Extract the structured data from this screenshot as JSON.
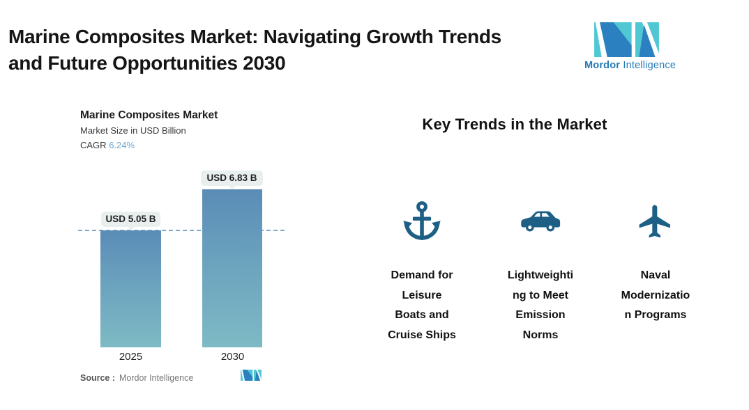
{
  "header": {
    "title": "Marine Composites Market: Navigating Growth Trends\nand Future Opportunities 2030",
    "logo": {
      "brand_bold": "Mordor",
      "brand_light": "Intelligence",
      "teal": "#4FC8D4",
      "blue": "#2B80C0",
      "text_color": "#2579B5"
    }
  },
  "chart": {
    "title": "Marine Composites Market",
    "subtitle": "Market Size in USD Billion",
    "cagr_label": "CAGR",
    "cagr_value": "6.24%",
    "source_label": "Source :",
    "source_value": "Mordor Intelligence"
  },
  "chart_data": {
    "type": "bar",
    "title": "Marine Composites Market",
    "subtitle": "Market Size in USD Billion",
    "cagr_pct": 6.24,
    "categories": [
      "2025",
      "2030"
    ],
    "values": [
      5.05,
      6.83
    ],
    "bar_labels": [
      "USD 5.05 B",
      "USD 6.83 B"
    ],
    "unit": "USD Billion",
    "ylim": [
      0,
      6.83
    ],
    "reference_line_at": 5.05,
    "grid": false,
    "legend": "none",
    "colors": {
      "bar_gradient_top": "#5A8CB6",
      "bar_gradient_bottom": "#7EBAC5",
      "dashed_reference_line": "#7EA9CE",
      "cagr_accent": "#6CA6CD",
      "callout_background": "#E9EFEE"
    }
  },
  "trends": {
    "heading": "Key Trends in the Market",
    "icon_color": "#1E5F86",
    "items": [
      {
        "icon": "anchor-icon",
        "label": "Demand for\nLeisure\nBoats and\nCruise Ships"
      },
      {
        "icon": "car-icon",
        "label": "Lightweighti\nng to Meet\nEmission\nNorms"
      },
      {
        "icon": "plane-icon",
        "label": "Naval\nModernizatio\nn Programs"
      }
    ]
  }
}
